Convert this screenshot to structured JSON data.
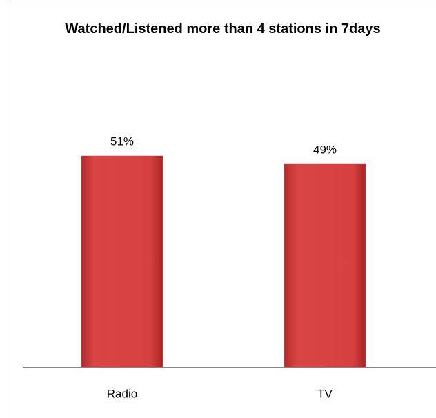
{
  "chart_data": {
    "type": "bar",
    "title": "Watched/Listened more than 4 stations in 7days",
    "categories": [
      "Radio",
      "TV"
    ],
    "values": [
      51,
      49
    ],
    "value_labels": [
      "51%",
      "49%"
    ],
    "color": "#d23c3c",
    "ylim": [
      0,
      60
    ]
  }
}
